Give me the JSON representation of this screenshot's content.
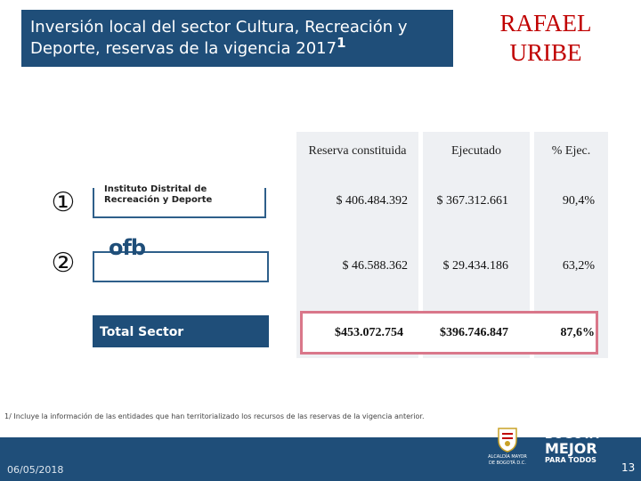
{
  "header": {
    "title": "Inversión local del sector Cultura, Recreación y Deporte, reservas de la vigencia 2017",
    "title_sup": "1",
    "locality": "RAFAEL URIBE"
  },
  "table": {
    "columns": [
      "Reserva constituida",
      "Ejecutado",
      "% Ejec."
    ],
    "rows": [
      {
        "marker": "①",
        "entity": "Instituto Distrital de Recreación y Deporte",
        "reserva": "$ 406.484.392",
        "ejecutado": "$ 367.312.661",
        "pct": "90,4%"
      },
      {
        "marker": "②",
        "entity": "ofb",
        "reserva": "$ 46.588.362",
        "ejecutado": "$ 29.434.186",
        "pct": "63,2%"
      }
    ],
    "total": {
      "label": "Total Sector",
      "reserva": "$453.072.754",
      "ejecutado": "$396.746.847",
      "pct": "87,6%"
    }
  },
  "footer": {
    "note": "1/ Incluye la información de las entidades que han territorializado los recursos de las reservas de la vigencia anterior.",
    "date": "06/05/2018",
    "page": "13",
    "logo_alcaldia": "ALCALDÍA MAYOR DE BOGOTÁ D.C.",
    "logo_bogota_line1": "BOGOTÁ",
    "logo_bogota_line2": "MEJOR",
    "logo_bogota_line3": "PARA TODOS"
  },
  "colors": {
    "primary": "#1f4e79",
    "brand_red": "#c00000",
    "highlight": "#d9778a"
  }
}
